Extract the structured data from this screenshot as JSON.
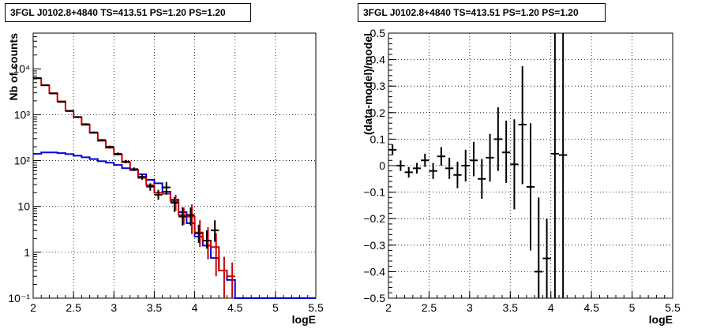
{
  "colors": {
    "data": "#000000",
    "model": "#cc0000",
    "component": "#0000dd",
    "grid": "#000000"
  },
  "chart_data": [
    {
      "type": "line",
      "title": "3FGL J0102.8+4840 TS=413.51 PS=1.20 PS=1.20",
      "xlabel": "logE",
      "ylabel": "Nb of counts",
      "log_y": true,
      "xlim": [
        2,
        5.5
      ],
      "ylim": [
        0.1,
        60000
      ],
      "grid": true,
      "x_ticks": [
        "2",
        "2.5",
        "3",
        "3.5",
        "4",
        "4.5",
        "5",
        "5.5"
      ],
      "y_ticks": [
        "10⁻¹",
        "1",
        "10",
        "10²",
        "10³",
        "10⁴"
      ],
      "bin_edges": [
        2.0,
        2.1,
        2.2,
        2.3,
        2.4,
        2.5,
        2.6,
        2.7,
        2.8,
        2.9,
        3.0,
        3.1,
        3.2,
        3.3,
        3.4,
        3.5,
        3.6,
        3.7,
        3.8,
        3.9,
        4.0,
        4.1,
        4.2,
        4.3,
        4.4,
        4.5,
        4.6,
        4.7,
        4.8,
        4.9,
        5.0,
        5.1,
        5.2,
        5.3,
        5.4,
        5.5
      ],
      "series": [
        {
          "role": "data",
          "x": [
            2.05,
            2.15,
            2.25,
            2.35,
            2.45,
            2.55,
            2.65,
            2.75,
            2.85,
            2.95,
            3.05,
            3.15,
            3.25,
            3.35,
            3.45,
            3.55,
            3.65,
            3.75,
            3.85,
            3.95,
            4.05,
            4.15,
            4.25
          ],
          "y": [
            6300,
            4400,
            2900,
            1900,
            1200,
            890,
            620,
            410,
            280,
            200,
            140,
            95,
            65,
            44,
            27,
            18,
            26,
            12,
            6.0,
            6.5,
            2.6,
            1.8,
            3.0
          ],
          "y_low": [
            6150,
            4280,
            2800,
            1850,
            1160,
            850,
            590,
            390,
            265,
            188,
            130,
            87,
            59,
            38,
            22,
            14,
            18,
            7.5,
            3.8,
            3.8,
            1.6,
            1.2,
            1.7
          ],
          "y_high": [
            6450,
            4520,
            3000,
            1950,
            1240,
            930,
            650,
            430,
            295,
            212,
            150,
            103,
            71,
            50,
            32,
            23,
            34,
            16,
            9.5,
            9.5,
            4.0,
            3.0,
            5.0
          ]
        },
        {
          "role": "model",
          "y": [
            6200,
            4350,
            2950,
            1950,
            1220,
            880,
            600,
            400,
            270,
            190,
            135,
            92,
            63,
            42,
            29,
            20,
            19,
            13,
            6.5,
            6.0,
            2.7,
            1.8,
            1.3,
            0.4,
            0.3
          ],
          "err_low": [
            null,
            null,
            null,
            null,
            null,
            null,
            null,
            null,
            null,
            null,
            null,
            null,
            null,
            null,
            null,
            null,
            null,
            8,
            4,
            2.5,
            1.3,
            0.7,
            0.3,
            0.1,
            0.1
          ],
          "err_high": [
            null,
            null,
            null,
            null,
            null,
            null,
            null,
            null,
            null,
            null,
            null,
            null,
            null,
            null,
            null,
            null,
            null,
            18,
            9.5,
            11,
            5,
            3.5,
            2.6,
            0.8,
            0.6
          ]
        },
        {
          "role": "component",
          "y": [
            140,
            150,
            150,
            145,
            138,
            128,
            118,
            108,
            97,
            90,
            80,
            68,
            62,
            50,
            38,
            32,
            21,
            14,
            7.5,
            4.3,
            2.2,
            1.4,
            0.75,
            0.4,
            0.25,
            0.1,
            0.1,
            0.1,
            0.1,
            0.1,
            0.1,
            0.1,
            0.1,
            0.1,
            0.1
          ]
        }
      ]
    },
    {
      "type": "scatter",
      "title": "3FGL J0102.8+4840 TS=413.51 PS=1.20 PS=1.20",
      "xlabel": "logE",
      "ylabel": "(data-model)/model",
      "xlim": [
        2,
        5.5
      ],
      "ylim": [
        -0.5,
        0.5
      ],
      "grid": true,
      "x_ticks": [
        "2",
        "2.5",
        "3",
        "3.5",
        "4",
        "4.5",
        "5",
        "5.5"
      ],
      "y_ticks": [
        "−0.5",
        "−0.4",
        "−0.3",
        "−0.2",
        "−0.1",
        "0",
        "0.1",
        "0.2",
        "0.3",
        "0.4",
        "0.5"
      ],
      "points": {
        "x": [
          2.05,
          2.15,
          2.25,
          2.35,
          2.45,
          2.55,
          2.65,
          2.75,
          2.85,
          2.95,
          3.05,
          3.15,
          3.25,
          3.35,
          3.45,
          3.55,
          3.65,
          3.75,
          3.85,
          3.95,
          4.05,
          4.15
        ],
        "y": [
          0.06,
          0.0,
          -0.025,
          -0.01,
          0.02,
          -0.02,
          0.035,
          -0.01,
          -0.035,
          -0.0,
          0.02,
          -0.05,
          0.03,
          0.1,
          0.05,
          0.005,
          0.155,
          -0.08,
          -0.4,
          -0.35,
          0.045,
          0.04
        ],
        "y_low": [
          0.04,
          -0.02,
          -0.045,
          -0.03,
          -0.005,
          -0.05,
          0.0,
          -0.05,
          -0.085,
          -0.06,
          -0.04,
          -0.125,
          -0.06,
          -0.02,
          -0.065,
          -0.165,
          -0.07,
          -0.32,
          -0.5,
          -0.5,
          -0.5,
          -0.5
        ],
        "y_high": [
          0.08,
          0.02,
          -0.005,
          0.01,
          0.045,
          0.01,
          0.07,
          0.03,
          0.015,
          0.06,
          0.09,
          0.025,
          0.12,
          0.22,
          0.17,
          0.175,
          0.375,
          0.16,
          -0.12,
          -0.2,
          0.5,
          0.5
        ]
      }
    }
  ]
}
